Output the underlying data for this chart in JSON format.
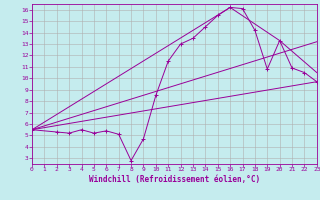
{
  "title": "",
  "xlabel": "Windchill (Refroidissement éolien,°C)",
  "bg_color": "#c5ecee",
  "grid_color": "#b0b0b0",
  "line_color": "#990099",
  "xlim": [
    0,
    23
  ],
  "ylim": [
    2.5,
    16.5
  ],
  "xticks": [
    0,
    1,
    2,
    3,
    4,
    5,
    6,
    7,
    8,
    9,
    10,
    11,
    12,
    13,
    14,
    15,
    16,
    17,
    18,
    19,
    20,
    21,
    22,
    23
  ],
  "yticks": [
    3,
    4,
    5,
    6,
    7,
    8,
    9,
    10,
    11,
    12,
    13,
    14,
    15,
    16
  ],
  "line1_x": [
    0,
    2,
    3,
    4,
    5,
    6,
    7,
    8,
    9,
    10,
    11,
    12,
    13,
    14,
    15,
    16,
    17,
    18,
    19,
    20,
    21,
    22,
    23
  ],
  "line1_y": [
    5.5,
    5.3,
    5.2,
    5.5,
    5.2,
    5.4,
    5.1,
    2.8,
    4.7,
    8.5,
    11.5,
    13.0,
    13.5,
    14.5,
    15.5,
    16.2,
    16.1,
    14.2,
    10.8,
    13.3,
    10.9,
    10.5,
    9.7
  ],
  "line2_x": [
    0,
    23
  ],
  "line2_y": [
    5.5,
    9.7
  ],
  "line3_x": [
    0,
    23
  ],
  "line3_y": [
    5.5,
    13.2
  ],
  "line4_x": [
    0,
    16,
    20,
    23
  ],
  "line4_y": [
    5.5,
    16.2,
    13.3,
    10.5
  ]
}
